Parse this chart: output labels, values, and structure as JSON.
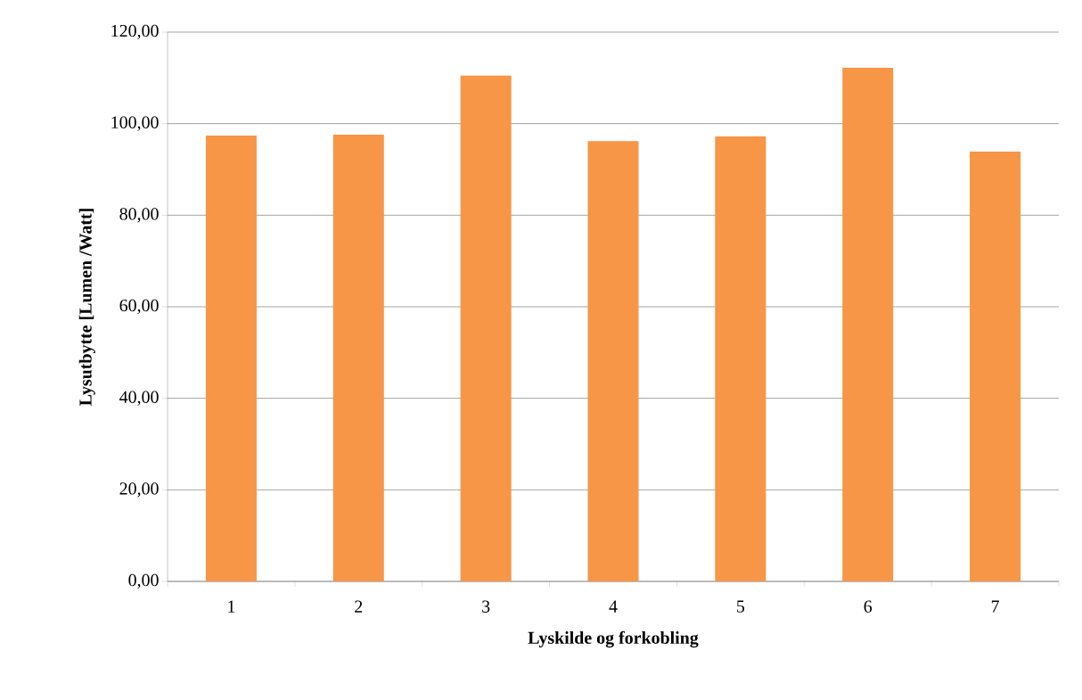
{
  "chart_data": {
    "type": "bar",
    "xlabel": "Lyskilde og forkobling",
    "ylabel": "Lysutbytte [Lumen /Watt]",
    "categories": [
      "1",
      "2",
      "3",
      "4",
      "5",
      "6",
      "7"
    ],
    "values": [
      97.4,
      97.6,
      110.5,
      96.2,
      97.2,
      112.2,
      93.9
    ],
    "color": "#f79646",
    "ylim": [
      0,
      120
    ],
    "yticks": [
      {
        "value": 0,
        "label": "0,00"
      },
      {
        "value": 20,
        "label": "20,00"
      },
      {
        "value": 40,
        "label": "40,00"
      },
      {
        "value": 60,
        "label": "60,00"
      },
      {
        "value": 80,
        "label": "80,00"
      },
      {
        "value": 100,
        "label": "100,00"
      },
      {
        "value": 120,
        "label": "120,00"
      }
    ],
    "grid": "y"
  }
}
